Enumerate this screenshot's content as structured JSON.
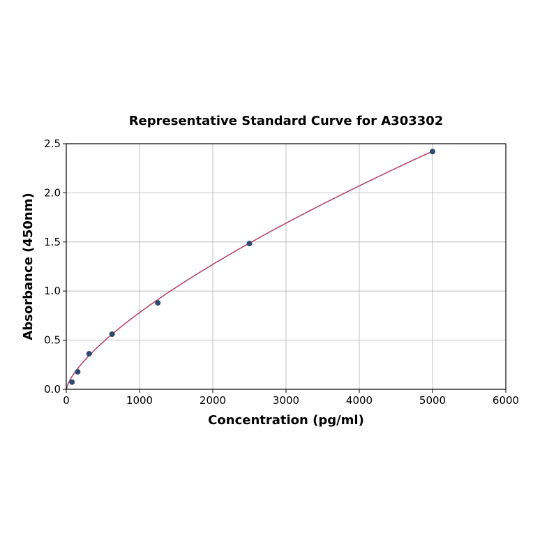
{
  "chart_data": {
    "type": "scatter",
    "title": "Representative Standard Curve for A303302",
    "xlabel": "Concentration (pg/ml)",
    "ylabel": "Absorbance (450nm)",
    "xlim": [
      0,
      6000
    ],
    "ylim": [
      0,
      2.5
    ],
    "xticks": [
      "0",
      "1000",
      "2000",
      "3000",
      "4000",
      "5000",
      "6000"
    ],
    "yticks": [
      "0.0",
      "0.5",
      "1.0",
      "1.5",
      "2.0",
      "2.5"
    ],
    "grid": true,
    "points": {
      "x": [
        78,
        156,
        312,
        625,
        1250,
        2500,
        5000
      ],
      "y": [
        0.073,
        0.178,
        0.362,
        0.561,
        0.88,
        1.484,
        2.42
      ]
    },
    "fit_curve": {
      "model": "power",
      "a": 0.00603,
      "b": 0.704,
      "x_range": [
        0,
        5000
      ]
    },
    "colors": {
      "points": "#2e4a6e",
      "curve": "#b5476b",
      "grid": "#b0b0b0"
    }
  }
}
